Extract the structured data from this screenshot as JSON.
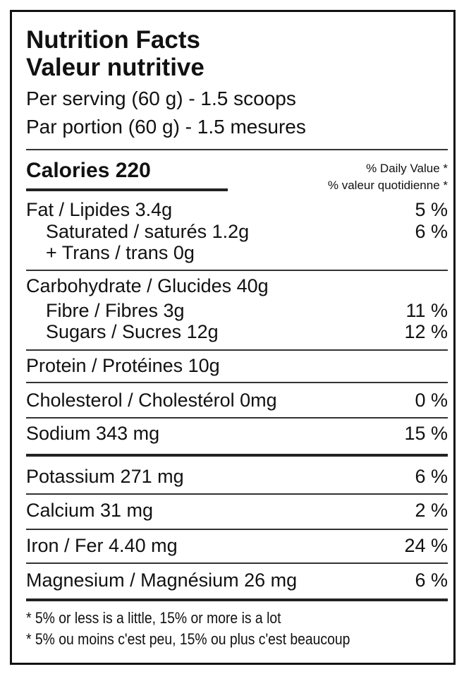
{
  "title_en": "Nutrition Facts",
  "title_fr": "Valeur nutritive",
  "serving_en": "Per serving (60 g) - 1.5 scoops",
  "serving_fr": "Par portion (60 g) - 1.5 mesures",
  "calories": "Calories 220",
  "dv_en": "% Daily Value *",
  "dv_fr": "% valeur quotidienne *",
  "rows": [
    {
      "label": "Fat / Lipides   3.4g",
      "dv": "5 %"
    },
    {
      "label": "Saturated / saturés 1.2g",
      "dv": "6 %"
    },
    {
      "label": "+ Trans / trans 0g",
      "dv": ""
    },
    {
      "label": "Carbohydrate / Glucides  40g",
      "dv": ""
    },
    {
      "label": "Fibre / Fibres 3g",
      "dv": "11 %"
    },
    {
      "label": "Sugars / Sucres 12g",
      "dv": "12 %"
    },
    {
      "label": "Protein / Protéines  10g",
      "dv": ""
    },
    {
      "label": "Cholesterol / Cholestérol  0mg",
      "dv": "0 %"
    },
    {
      "label": "Sodium  343 mg",
      "dv": "15 %"
    },
    {
      "label": "Potassium 271 mg",
      "dv": "6 %"
    },
    {
      "label": "Calcium 31 mg",
      "dv": "2 %"
    },
    {
      "label": "Iron / Fer 4.40 mg",
      "dv": "24 %"
    },
    {
      "label": "Magnesium / Magnésium 26 mg",
      "dv": "6 %"
    }
  ],
  "footnote_en": "* 5% or less is a little, 15% or more is a lot",
  "footnote_fr": "* 5% ou moins c'est peu, 15% ou plus c'est beaucoup"
}
